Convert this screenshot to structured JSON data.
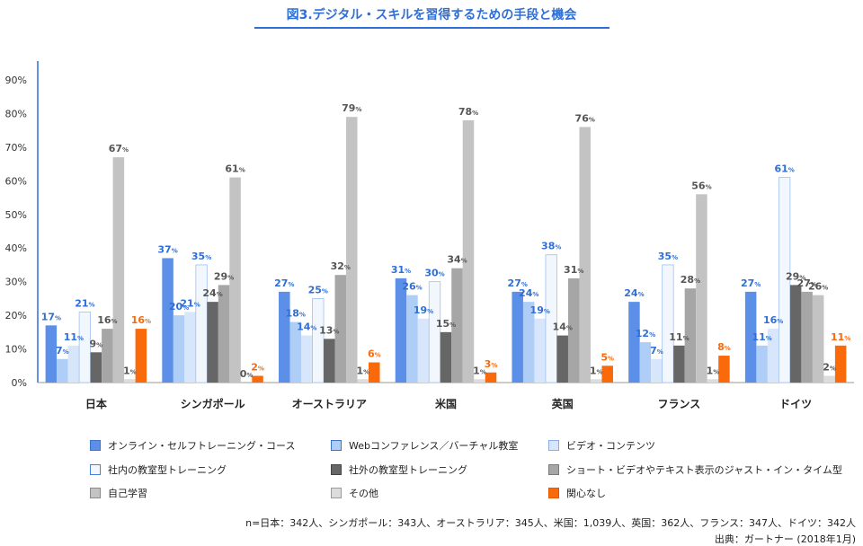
{
  "title": "図3.デジタル・スキルを習得するための手段と機会",
  "colors": {
    "title": "#2f6fd6",
    "online": "#5b8fe8",
    "web": "#aecdf7",
    "video": "#d7e6fb",
    "inhouse": "#f2f7fe",
    "outside": "#666666",
    "short": "#a6a6a6",
    "self": "#c3c3c3",
    "other": "#dcdcdc",
    "none": "#fa6a0a",
    "label_blue": "#2f6fd6",
    "label_gray": "#555555",
    "label_orange": "#fa6a0a"
  },
  "chart_data": {
    "type": "bar",
    "categories": [
      "日本",
      "シンガポール",
      "オーストラリア",
      "米国",
      "英国",
      "フランス",
      "ドイツ"
    ],
    "ylim": [
      0,
      90
    ],
    "yticks": [
      "0%",
      "10%",
      "20%",
      "30%",
      "40%",
      "50%",
      "60%",
      "70%",
      "80%",
      "90%"
    ],
    "unit": "%",
    "grid": false,
    "legend_position": "bottom",
    "series": [
      {
        "name": "オンライン・セルフトレーニング・コース",
        "values": [
          17,
          37,
          27,
          31,
          27,
          24,
          27
        ]
      },
      {
        "name": "Webコンファレンス／バーチャル教室",
        "values": [
          7,
          20,
          18,
          26,
          24,
          12,
          11
        ]
      },
      {
        "name": "ビデオ・コンテンツ",
        "values": [
          11,
          21,
          14,
          19,
          19,
          7,
          16
        ]
      },
      {
        "name": "社内の教室型トレーニング",
        "values": [
          21,
          35,
          25,
          30,
          38,
          35,
          61
        ]
      },
      {
        "name": "社外の教室型トレーニング",
        "values": [
          9,
          24,
          13,
          15,
          14,
          11,
          29
        ]
      },
      {
        "name": "ショート・ビデオやテキスト表示のジャスト・イン・タイム型",
        "values": [
          16,
          29,
          32,
          34,
          31,
          28,
          27
        ]
      },
      {
        "name": "自己学習",
        "values": [
          67,
          61,
          79,
          78,
          76,
          56,
          26
        ]
      },
      {
        "name": "その他",
        "values": [
          1,
          0,
          1,
          1,
          1,
          1,
          2
        ]
      },
      {
        "name": "関心なし",
        "values": [
          16,
          2,
          6,
          3,
          5,
          8,
          11
        ]
      }
    ]
  },
  "note": "n=日本：342人、シンガポール：343人、オーストラリア：345人、米国：1,039人、英国：362人、フランス：347人、ドイツ：342人",
  "source": "出典：ガートナー (2018年1月)"
}
